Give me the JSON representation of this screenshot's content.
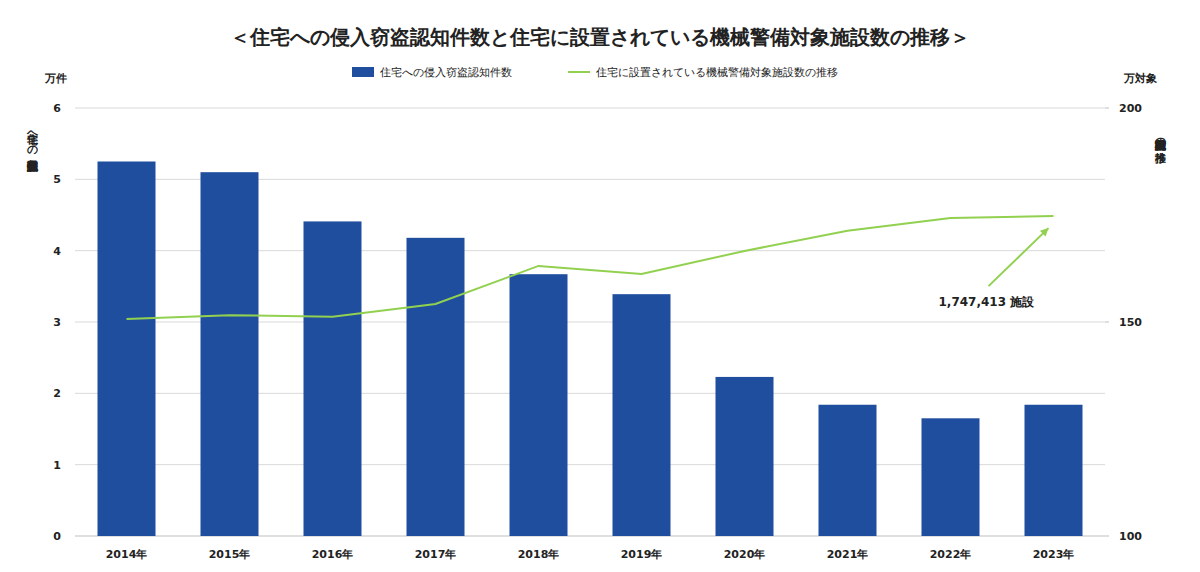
{
  "chart_data": {
    "type": "bar",
    "title": "＜住宅への侵入窃盗認知件数と住宅に設置されている機械警備対象施設数の推移＞",
    "ylabel": "住宅への侵入窃盗認知件数",
    "yunit": "万件",
    "y2label": "機械警備対象施設の推移",
    "y2unit": "万対象",
    "annotation": "1,747,413 施設",
    "categories": [
      "2014年",
      "2015年",
      "2016年",
      "2017年",
      "2018年",
      "2019年",
      "2020年",
      "2021年",
      "2022年",
      "2023年"
    ],
    "series": [
      {
        "name": "住宅への侵入窃盗認知件数",
        "type": "bar",
        "color": "#1f4e9f",
        "values": [
          5.25,
          5.1,
          4.41,
          4.18,
          3.67,
          3.39,
          2.23,
          1.84,
          1.65,
          1.84
        ]
      },
      {
        "name": "住宅に設置されている機械警備対象施設数の推移",
        "type": "line",
        "axis": "y2",
        "color": "#92d050",
        "values": [
          150.7,
          151.6,
          151.2,
          154.2,
          163.1,
          161.2,
          166.6,
          171.3,
          174.3,
          174.74
        ]
      }
    ],
    "ylim": [
      0,
      6
    ],
    "yticks": [
      0,
      1,
      2,
      3,
      4,
      5,
      6
    ],
    "y2lim": [
      100,
      200
    ],
    "y2ticks": [
      100,
      150,
      200
    ],
    "grid": true,
    "legend": "top"
  }
}
